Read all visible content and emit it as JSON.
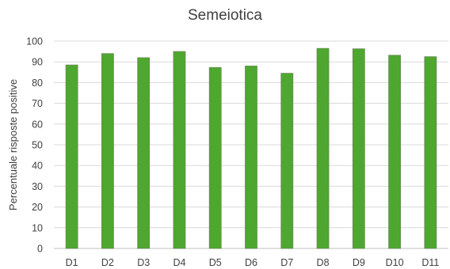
{
  "chart_data": {
    "type": "bar",
    "title": "Semeiotica",
    "xlabel": "",
    "ylabel": "Percentuale risposte positive",
    "categories": [
      "D1",
      "D2",
      "D3",
      "D4",
      "D5",
      "D6",
      "D7",
      "D8",
      "D9",
      "D10",
      "D11"
    ],
    "values": [
      88.5,
      94,
      92,
      95,
      87.3,
      88,
      84.5,
      96.5,
      96.3,
      93.2,
      92.5
    ],
    "ylim": [
      0,
      100
    ],
    "yticks": [
      0,
      10,
      20,
      30,
      40,
      50,
      60,
      70,
      80,
      90,
      100
    ],
    "grid": true,
    "legend": "none",
    "bar_color": "#4ea72e",
    "bar_edge_color": "#6a8a5a"
  }
}
